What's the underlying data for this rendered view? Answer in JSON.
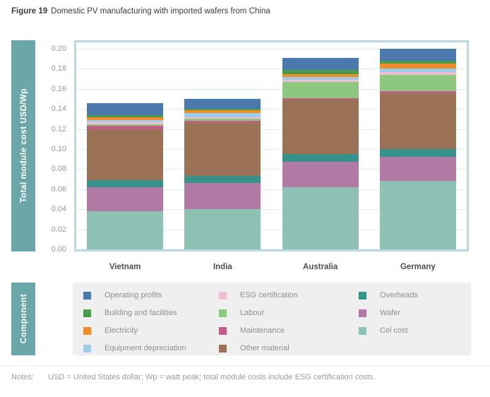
{
  "title": {
    "label": "Figure 19",
    "text": "Domestic PV manufacturing with imported wafers from China"
  },
  "y_axis": {
    "label": "Total module cost USD/Wp",
    "ticks": [
      "0.00",
      "0.02",
      "0.04",
      "0.06",
      "0.08",
      "0.10",
      "0.12",
      "0.14",
      "0.16",
      "0.18",
      "0.20"
    ]
  },
  "component_label": "Component",
  "chart_data": {
    "type": "bar",
    "stacked": true,
    "title": "Domestic PV manufacturing with imported wafers from China",
    "xlabel": "",
    "ylabel": "Total module cost USD/Wp",
    "ylim": [
      0,
      0.2
    ],
    "ytick_step": 0.02,
    "grid": true,
    "legend_position": "bottom",
    "categories": [
      "Vietnam",
      "India",
      "Australia",
      "Germany"
    ],
    "series": [
      {
        "name": "Cel cost",
        "color": "#8ec0b3",
        "values": [
          0.038,
          0.04,
          0.062,
          0.068
        ]
      },
      {
        "name": "Wafer",
        "color": "#b07aa4",
        "values": [
          0.024,
          0.026,
          0.025,
          0.024
        ]
      },
      {
        "name": "Overheads",
        "color": "#37928b",
        "values": [
          0.007,
          0.007,
          0.008,
          0.008
        ]
      },
      {
        "name": "Other material",
        "color": "#9c7257",
        "values": [
          0.051,
          0.053,
          0.054,
          0.056
        ]
      },
      {
        "name": "Maintenance",
        "color": "#c0608a",
        "values": [
          0.003,
          0.002,
          0.002,
          0.002
        ]
      },
      {
        "name": "Labour",
        "color": "#8dc87e",
        "values": [
          0.002,
          0.002,
          0.016,
          0.016
        ]
      },
      {
        "name": "ESG certification",
        "color": "#f2bed3",
        "values": [
          0.002,
          0.002,
          0.002,
          0.003
        ]
      },
      {
        "name": "Equipment depreciation",
        "color": "#9ecbe8",
        "values": [
          0.002,
          0.004,
          0.003,
          0.003
        ]
      },
      {
        "name": "Electricity",
        "color": "#ee8d2a",
        "values": [
          0.003,
          0.003,
          0.003,
          0.005
        ]
      },
      {
        "name": "Building and facilities",
        "color": "#4a9a4b",
        "values": [
          0.002,
          0.001,
          0.004,
          0.003
        ]
      },
      {
        "name": "Operating profits",
        "color": "#4b79ad",
        "values": [
          0.012,
          0.01,
          0.012,
          0.012
        ]
      }
    ],
    "totals": [
      0.146,
      0.15,
      0.191,
      0.2
    ]
  },
  "legend": {
    "columns": [
      {
        "items": [
          {
            "label": "Operating profits",
            "color": "#4b79ad"
          },
          {
            "label": "Building and facilities",
            "color": "#4a9a4b"
          },
          {
            "label": "Electricity",
            "color": "#ee8d2a"
          },
          {
            "label": "Equipment depreciation",
            "color": "#9ecbe8"
          }
        ]
      },
      {
        "items": [
          {
            "label": "ESG certification",
            "color": "#f2bed3"
          },
          {
            "label": "Labour",
            "color": "#8dc87e"
          },
          {
            "label": "Maintenance",
            "color": "#c0608a"
          },
          {
            "label": "Other material",
            "color": "#9c7257"
          }
        ]
      },
      {
        "items": [
          {
            "label": "Overheads",
            "color": "#37928b"
          },
          {
            "label": "Wafer",
            "color": "#b07aa4"
          },
          {
            "label": "Cel cost",
            "color": "#8ec0b3"
          }
        ]
      }
    ]
  },
  "notes": {
    "label": "Notes:",
    "text": "USD = United States dollar; Wp = watt peak; total module costs include ESG certification costs."
  },
  "colors": {
    "axis_strip": "#6ba6a8",
    "plot_border": "#b9d9e2",
    "gridline": "#dceef2",
    "legend_background": "#efefef"
  }
}
